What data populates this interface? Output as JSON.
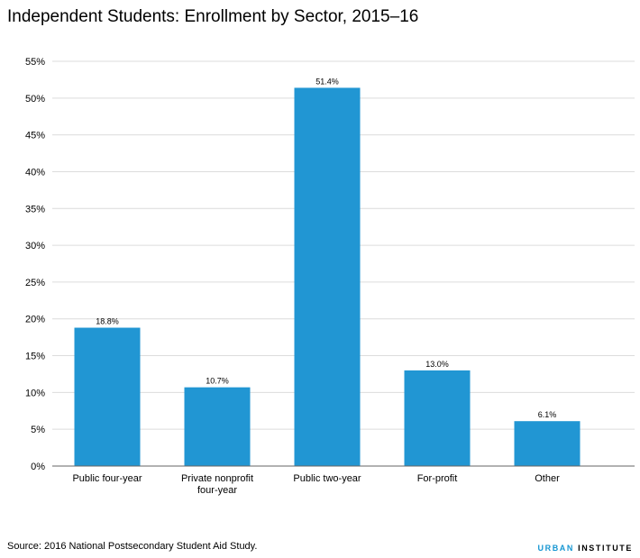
{
  "header": {
    "title": "Independent Students: Enrollment by Sector, 2015–16"
  },
  "footer": {
    "source": "Source: 2016 National Postsecondary Student Aid Study.",
    "logo_part1": "URBAN",
    "logo_part2": " INSTITUTE"
  },
  "colors": {
    "bar": "#2196d3",
    "grid": "#dcdcdc",
    "axis": "#666666",
    "logo_accent": "#1696d2"
  },
  "chart_data": {
    "type": "bar",
    "title": "Independent Students: Enrollment by Sector, 2015–16",
    "xlabel": "",
    "ylabel": "",
    "categories": [
      "Public four-year",
      "Private nonprofit four-year",
      "Public two-year",
      "For-profit",
      "Other"
    ],
    "category_lines": [
      [
        "Public four-year"
      ],
      [
        "Private nonprofit",
        "four-year"
      ],
      [
        "Public two-year"
      ],
      [
        "For-profit"
      ],
      [
        "Other"
      ]
    ],
    "values": [
      18.8,
      10.7,
      51.4,
      13.0,
      6.1
    ],
    "value_labels": [
      "18.8%",
      "10.7%",
      "51.4%",
      "13.0%",
      "6.1%"
    ],
    "ylim": [
      0,
      55
    ],
    "yticks": [
      0,
      5,
      10,
      15,
      20,
      25,
      30,
      35,
      40,
      45,
      50,
      55
    ],
    "ytick_labels": [
      "0%",
      "5%",
      "10%",
      "15%",
      "20%",
      "25%",
      "30%",
      "35%",
      "40%",
      "45%",
      "50%",
      "55%"
    ],
    "grid": true,
    "legend": "none"
  }
}
